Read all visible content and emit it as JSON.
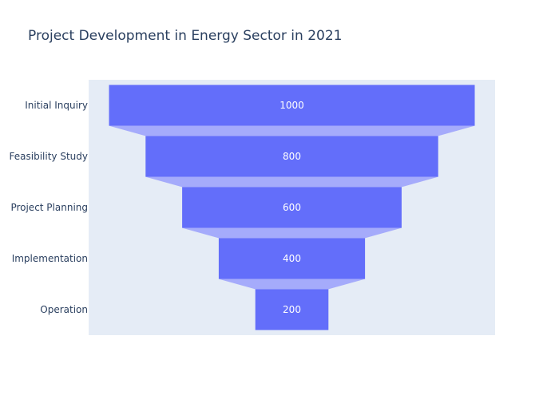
{
  "chart_data": {
    "type": "funnel",
    "title": "Project Development in Energy Sector in 2021",
    "categories": [
      "Initial Inquiry",
      "Feasibility Study",
      "Project Planning",
      "Implementation",
      "Operation"
    ],
    "values": [
      1000,
      800,
      600,
      400,
      200
    ],
    "value_labels": [
      "1000",
      "800",
      "600",
      "400",
      "200"
    ],
    "xlabel": "",
    "ylabel": "",
    "grid": false,
    "legend": "none",
    "colors": {
      "bar": "#636efa",
      "connector": "#a5abfb",
      "plot_bg": "#e5ecf6",
      "text": "#2a3f5f",
      "value_text": "#ffffff"
    }
  }
}
